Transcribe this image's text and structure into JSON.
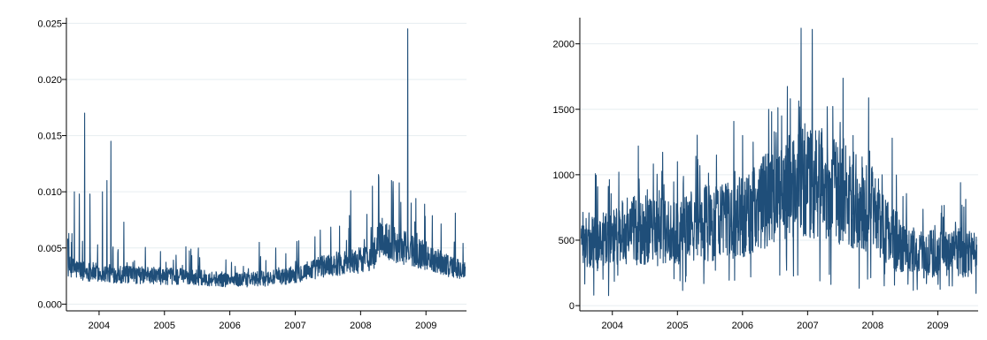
{
  "chart_data": [
    {
      "type": "line",
      "title": "",
      "xlabel": "",
      "ylabel": "",
      "xlim": [
        2003.5,
        2009.62
      ],
      "ylim": [
        -0.0006,
        0.0255
      ],
      "grid": true,
      "xticks": [
        2004,
        2005,
        2006,
        2007,
        2008,
        2009
      ],
      "xtick_labels": [
        "2004",
        "2005",
        "2006",
        "2007",
        "2008",
        "2009"
      ],
      "yticks": [
        0.0,
        0.005,
        0.01,
        0.015,
        0.02,
        0.025
      ],
      "ytick_labels": [
        "0.000",
        "0.005",
        "0.010",
        "0.015",
        "0.020",
        "0.025"
      ],
      "color": "#1f4e79",
      "spikes": [
        [
          2003.62,
          0.01
        ],
        [
          2003.7,
          0.0098
        ],
        [
          2003.78,
          0.017
        ],
        [
          2003.86,
          0.0098
        ],
        [
          2004.05,
          0.01
        ],
        [
          2004.12,
          0.011
        ],
        [
          2004.18,
          0.0145
        ],
        [
          2004.38,
          0.0073
        ],
        [
          2005.52,
          0.005
        ],
        [
          2006.45,
          0.0055
        ],
        [
          2006.7,
          0.005
        ],
        [
          2007.3,
          0.006
        ],
        [
          2007.85,
          0.0101
        ],
        [
          2008.18,
          0.0105
        ],
        [
          2008.28,
          0.0113
        ],
        [
          2008.5,
          0.009
        ],
        [
          2008.72,
          0.0245
        ],
        [
          2008.98,
          0.0089
        ],
        [
          2009.45,
          0.0081
        ]
      ],
      "series": [
        {
          "x": [
            2003.5,
            2003.75,
            2004.0,
            2004.25,
            2004.5,
            2004.75,
            2005.0,
            2005.25,
            2005.5,
            2005.75,
            2006.0,
            2006.25,
            2006.5,
            2006.75,
            2007.0,
            2007.25,
            2007.5,
            2007.75,
            2008.0,
            2008.2,
            2008.3,
            2008.5,
            2008.75,
            2009.0,
            2009.25,
            2009.5,
            2009.62
          ],
          "values": [
            0.0032,
            0.0029,
            0.0027,
            0.0026,
            0.0025,
            0.0025,
            0.0024,
            0.0024,
            0.0023,
            0.0022,
            0.0021,
            0.0021,
            0.0022,
            0.0023,
            0.0026,
            0.003,
            0.0034,
            0.0036,
            0.0038,
            0.0042,
            0.0058,
            0.0052,
            0.0047,
            0.0042,
            0.0036,
            0.003,
            0.0028
          ]
        }
      ]
    },
    {
      "type": "line",
      "title": "",
      "xlabel": "",
      "ylabel": "",
      "xlim": [
        2003.5,
        2009.62
      ],
      "ylim": [
        -40,
        2200
      ],
      "grid": true,
      "xticks": [
        2004,
        2005,
        2006,
        2007,
        2008,
        2009
      ],
      "xtick_labels": [
        "2004",
        "2005",
        "2006",
        "2007",
        "2008",
        "2009"
      ],
      "yticks": [
        0,
        500,
        1000,
        1500,
        2000
      ],
      "ytick_labels": [
        "0",
        "500",
        "1000",
        "1500",
        "2000"
      ],
      "color": "#1f4e79",
      "spikes": [
        [
          2004.1,
          1020
        ],
        [
          2004.4,
          1220
        ],
        [
          2005.0,
          1100
        ],
        [
          2005.6,
          1150
        ],
        [
          2006.0,
          1300
        ],
        [
          2006.4,
          1500
        ],
        [
          2006.6,
          1450
        ],
        [
          2006.9,
          2120
        ],
        [
          2007.07,
          2110
        ],
        [
          2007.3,
          1520
        ],
        [
          2007.5,
          1400
        ],
        [
          2007.7,
          1300
        ],
        [
          2008.0,
          1020
        ],
        [
          2008.3,
          1280
        ],
        [
          2009.35,
          940
        ]
      ],
      "series": [
        {
          "x": [
            2003.5,
            2003.75,
            2004.0,
            2004.25,
            2004.5,
            2004.75,
            2005.0,
            2005.25,
            2005.5,
            2005.75,
            2006.0,
            2006.25,
            2006.5,
            2006.75,
            2007.0,
            2007.25,
            2007.5,
            2007.75,
            2008.0,
            2008.25,
            2008.5,
            2008.75,
            2009.0,
            2009.25,
            2009.5,
            2009.62
          ],
          "values": [
            480,
            470,
            500,
            560,
            560,
            550,
            560,
            600,
            620,
            640,
            660,
            760,
            820,
            880,
            950,
            900,
            840,
            780,
            720,
            520,
            420,
            380,
            390,
            400,
            380,
            360
          ]
        }
      ]
    }
  ]
}
